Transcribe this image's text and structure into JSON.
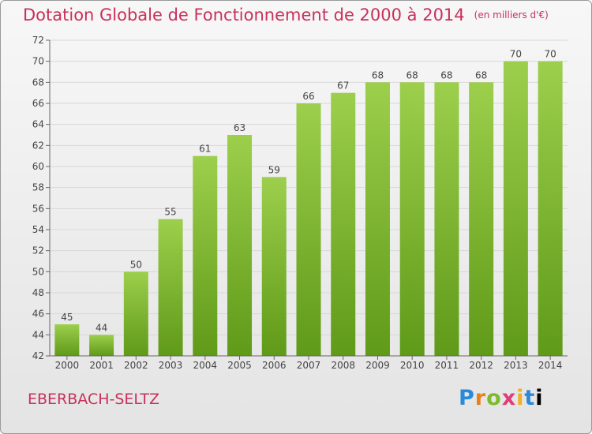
{
  "header": {
    "title": "Dotation Globale de Fonctionnement de 2000 à 2014",
    "unit": "(en milliers d'€)"
  },
  "footer": {
    "commune": "EBERBACH-SELTZ",
    "brand_letters": [
      "P",
      "r",
      "o",
      "x",
      "i",
      "t",
      "i"
    ]
  },
  "colors": {
    "title": "#c8305c",
    "bar_light": "#9ccf4c",
    "bar_dark": "#5f9a18",
    "grid": "#d8d8d8"
  },
  "chart_data": {
    "type": "bar",
    "title": "Dotation Globale de Fonctionnement de 2000 à 2014",
    "subtitle": "(en milliers d'€)",
    "categories": [
      "2000",
      "2001",
      "2002",
      "2003",
      "2004",
      "2005",
      "2006",
      "2007",
      "2008",
      "2009",
      "2010",
      "2011",
      "2012",
      "2013",
      "2014"
    ],
    "values": [
      45,
      44,
      50,
      55,
      61,
      63,
      59,
      66,
      67,
      68,
      68,
      68,
      68,
      70,
      70
    ],
    "ylim": [
      42,
      72
    ],
    "yticks": [
      42,
      44,
      46,
      48,
      50,
      52,
      54,
      56,
      58,
      60,
      62,
      64,
      66,
      68,
      70,
      72
    ],
    "grid": true,
    "data_labels": true
  }
}
